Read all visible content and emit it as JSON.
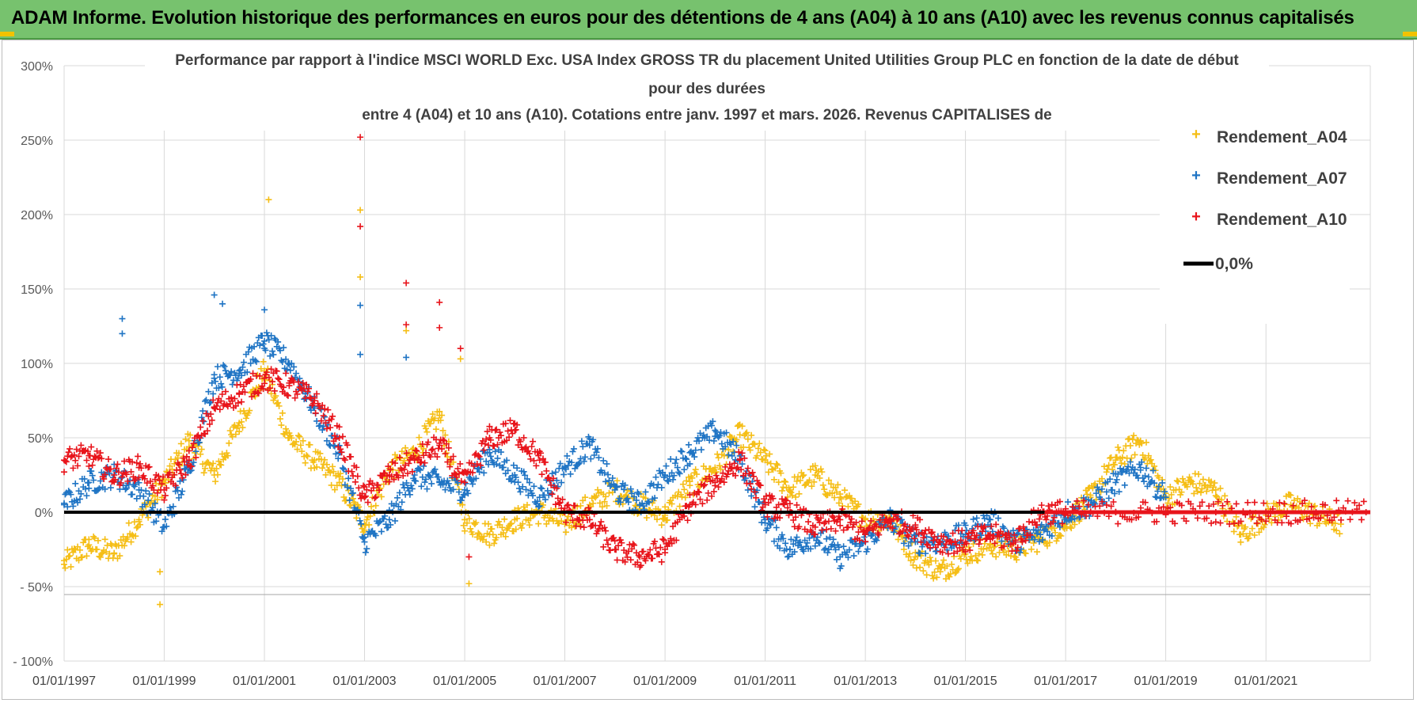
{
  "banner": {
    "title": "ADAM Informe. Evolution historique des performances en euros pour des détentions de 4 ans (A04) à 10 ans (A10) avec les revenus connus capitalisés"
  },
  "colors": {
    "banner_bg": "#77c26e",
    "A04": "#f5be16",
    "A07": "#1f74c4",
    "A10": "#e8141b",
    "zero_line": "#000000",
    "grid": "#d9d9d9"
  },
  "chart_data": {
    "type": "scatter",
    "title_lines": [
      "Performance par rapport à l'indice MSCI WORLD Exc. USA Index GROSS TR  du placement United Utilities Group PLC en fonction de la date de début",
      "pour des durées",
      "entre 4 (A04) et 10 ans (A10). Cotations entre janv. 1997 et mars. 2026. Revenus CAPITALISES de"
    ],
    "xlabel": "",
    "ylabel": "",
    "x_range": [
      "1997-01-01",
      "2023-02-01"
    ],
    "y_range": [
      -100,
      300
    ],
    "y_unit": "%",
    "y_tick_labels": [
      "300%",
      "250%",
      "200%",
      "150%",
      "100%",
      "50%",
      "0%",
      "- 50%",
      "- 100%"
    ],
    "y_tick_values": [
      300,
      250,
      200,
      150,
      100,
      50,
      0,
      -50,
      -100
    ],
    "x_tick_labels": [
      "01/01/1997",
      "01/01/1999",
      "01/01/2001",
      "01/01/2003",
      "01/01/2005",
      "01/01/2007",
      "01/01/2009",
      "01/01/2011",
      "01/01/2013",
      "01/01/2015",
      "01/01/2017",
      "01/01/2019",
      "01/01/2021"
    ],
    "x_tick_years": [
      1997,
      1999,
      2001,
      2003,
      2005,
      2007,
      2009,
      2011,
      2013,
      2015,
      2017,
      2019,
      2021
    ],
    "grid": true,
    "legend_position": "top-right",
    "marker": "+",
    "series": [
      {
        "name": "Rendement_A04",
        "key": "A04",
        "points": [
          [
            "1997-01-01",
            -35
          ],
          [
            "1997-07-01",
            -22
          ],
          [
            "1998-01-01",
            -28
          ],
          [
            "1998-07-01",
            -5
          ],
          [
            "1999-01-01",
            20
          ],
          [
            "1999-07-01",
            48
          ],
          [
            "2000-01-01",
            25
          ],
          [
            "2000-07-01",
            60
          ],
          [
            "2001-01-01",
            95
          ],
          [
            "2001-07-01",
            50
          ],
          [
            "2002-01-01",
            35
          ],
          [
            "2002-07-01",
            20
          ],
          [
            "2003-01-01",
            -8
          ],
          [
            "2003-07-01",
            28
          ],
          [
            "2004-01-01",
            40
          ],
          [
            "2004-07-01",
            65
          ],
          [
            "2005-01-01",
            -5
          ],
          [
            "2005-07-01",
            -15
          ],
          [
            "2006-01-01",
            -5
          ],
          [
            "2006-07-01",
            0
          ],
          [
            "2007-01-01",
            -8
          ],
          [
            "2007-07-01",
            5
          ],
          [
            "2008-01-01",
            15
          ],
          [
            "2008-07-01",
            5
          ],
          [
            "2009-01-01",
            -2
          ],
          [
            "2009-07-01",
            18
          ],
          [
            "2010-01-01",
            30
          ],
          [
            "2010-07-01",
            52
          ],
          [
            "2011-01-01",
            35
          ],
          [
            "2011-07-01",
            15
          ],
          [
            "2012-01-01",
            25
          ],
          [
            "2012-07-01",
            10
          ],
          [
            "2013-01-01",
            -5
          ],
          [
            "2013-07-01",
            -5
          ],
          [
            "2014-01-01",
            -30
          ],
          [
            "2014-07-01",
            -40
          ],
          [
            "2015-01-01",
            -28
          ],
          [
            "2015-07-01",
            -22
          ],
          [
            "2016-01-01",
            -25
          ],
          [
            "2016-07-01",
            -18
          ],
          [
            "2017-01-01",
            -8
          ],
          [
            "2017-07-01",
            10
          ],
          [
            "2018-01-01",
            35
          ],
          [
            "2018-07-01",
            48
          ],
          [
            "2019-01-01",
            10
          ],
          [
            "2019-07-01",
            20
          ],
          [
            "2020-01-01",
            15
          ],
          [
            "2020-07-01",
            -15
          ],
          [
            "2021-01-01",
            -2
          ],
          [
            "2021-07-01",
            5
          ],
          [
            "2022-01-01",
            -2
          ],
          [
            "2022-07-01",
            -8
          ]
        ]
      },
      {
        "name": "Rendement_A07",
        "key": "A07",
        "points": [
          [
            "1997-01-01",
            5
          ],
          [
            "1997-07-01",
            20
          ],
          [
            "1998-01-01",
            25
          ],
          [
            "1998-07-01",
            15
          ],
          [
            "1999-01-01",
            -10
          ],
          [
            "1999-07-01",
            30
          ],
          [
            "2000-01-01",
            90
          ],
          [
            "2000-07-01",
            95
          ],
          [
            "2001-01-01",
            115
          ],
          [
            "2001-07-01",
            100
          ],
          [
            "2002-01-01",
            70
          ],
          [
            "2002-07-01",
            40
          ],
          [
            "2003-01-01",
            -20
          ],
          [
            "2003-07-01",
            -5
          ],
          [
            "2004-01-01",
            25
          ],
          [
            "2004-07-01",
            20
          ],
          [
            "2005-01-01",
            15
          ],
          [
            "2005-07-01",
            40
          ],
          [
            "2006-01-01",
            25
          ],
          [
            "2006-07-01",
            10
          ],
          [
            "2007-01-01",
            30
          ],
          [
            "2007-07-01",
            45
          ],
          [
            "2008-01-01",
            15
          ],
          [
            "2008-07-01",
            5
          ],
          [
            "2009-01-01",
            25
          ],
          [
            "2009-07-01",
            40
          ],
          [
            "2010-01-01",
            55
          ],
          [
            "2010-07-01",
            35
          ],
          [
            "2011-01-01",
            -5
          ],
          [
            "2011-07-01",
            -25
          ],
          [
            "2012-01-01",
            -15
          ],
          [
            "2012-07-01",
            -30
          ],
          [
            "2013-01-01",
            -20
          ],
          [
            "2013-07-01",
            -5
          ],
          [
            "2014-01-01",
            -20
          ],
          [
            "2014-07-01",
            -20
          ],
          [
            "2015-01-01",
            -15
          ],
          [
            "2015-07-01",
            -5
          ],
          [
            "2016-01-01",
            -20
          ],
          [
            "2016-07-01",
            -15
          ],
          [
            "2017-01-01",
            0
          ],
          [
            "2017-07-01",
            5
          ],
          [
            "2018-01-01",
            20
          ],
          [
            "2018-07-01",
            30
          ],
          [
            "2019-01-01",
            10
          ]
        ]
      },
      {
        "name": "Rendement_A10",
        "key": "A10",
        "points": [
          [
            "1997-01-01",
            35
          ],
          [
            "1997-07-01",
            38
          ],
          [
            "1998-01-01",
            25
          ],
          [
            "1998-07-01",
            30
          ],
          [
            "1999-01-01",
            15
          ],
          [
            "1999-07-01",
            35
          ],
          [
            "2000-01-01",
            70
          ],
          [
            "2000-07-01",
            80
          ],
          [
            "2001-01-01",
            90
          ],
          [
            "2001-07-01",
            85
          ],
          [
            "2002-01-01",
            75
          ],
          [
            "2002-07-01",
            50
          ],
          [
            "2003-01-01",
            10
          ],
          [
            "2003-07-01",
            25
          ],
          [
            "2004-01-01",
            35
          ],
          [
            "2004-07-01",
            45
          ],
          [
            "2005-01-01",
            20
          ],
          [
            "2005-07-01",
            50
          ],
          [
            "2006-01-01",
            55
          ],
          [
            "2006-07-01",
            35
          ],
          [
            "2007-01-01",
            0
          ],
          [
            "2007-07-01",
            -5
          ],
          [
            "2008-01-01",
            -25
          ],
          [
            "2008-07-01",
            -30
          ],
          [
            "2009-01-01",
            -25
          ],
          [
            "2009-07-01",
            5
          ],
          [
            "2010-01-01",
            20
          ],
          [
            "2010-07-01",
            35
          ],
          [
            "2011-01-01",
            5
          ],
          [
            "2011-07-01",
            0
          ],
          [
            "2012-01-01",
            -10
          ],
          [
            "2012-07-01",
            -5
          ],
          [
            "2013-01-01",
            -15
          ],
          [
            "2013-07-01",
            -5
          ],
          [
            "2014-01-01",
            -10
          ],
          [
            "2014-07-01",
            -20
          ],
          [
            "2015-01-01",
            -20
          ],
          [
            "2015-07-01",
            -15
          ],
          [
            "2016-01-01",
            -20
          ],
          [
            "2016-07-01",
            0
          ],
          [
            "2017-01-01",
            0
          ],
          [
            "2018-01-01",
            0
          ],
          [
            "2019-01-01",
            0
          ],
          [
            "2020-01-01",
            0
          ],
          [
            "2021-01-01",
            0
          ],
          [
            "2022-01-01",
            0
          ],
          [
            "2023-01-01",
            0
          ]
        ]
      }
    ],
    "outliers": [
      {
        "key": "A10",
        "x": "2002-12-01",
        "y": 252
      },
      {
        "key": "A10",
        "x": "2002-12-01",
        "y": 192
      },
      {
        "key": "A10",
        "x": "2003-11-01",
        "y": 154
      },
      {
        "key": "A10",
        "x": "2004-07-01",
        "y": 141
      },
      {
        "key": "A10",
        "x": "2004-07-01",
        "y": 124
      },
      {
        "key": "A10",
        "x": "2003-11-01",
        "y": 126
      },
      {
        "key": "A10",
        "x": "2004-12-01",
        "y": 110
      },
      {
        "key": "A10",
        "x": "2005-02-01",
        "y": -30
      },
      {
        "key": "A04",
        "x": "2001-02-01",
        "y": 210
      },
      {
        "key": "A04",
        "x": "2002-12-01",
        "y": 203
      },
      {
        "key": "A04",
        "x": "2002-12-01",
        "y": 158
      },
      {
        "key": "A04",
        "x": "2003-11-01",
        "y": 122
      },
      {
        "key": "A04",
        "x": "1998-12-01",
        "y": -62
      },
      {
        "key": "A04",
        "x": "1998-12-01",
        "y": -40
      },
      {
        "key": "A04",
        "x": "2005-02-01",
        "y": -48
      },
      {
        "key": "A04",
        "x": "2004-12-01",
        "y": 103
      },
      {
        "key": "A07",
        "x": "1998-03-01",
        "y": 130
      },
      {
        "key": "A07",
        "x": "1998-03-01",
        "y": 120
      },
      {
        "key": "A07",
        "x": "2000-01-01",
        "y": 146
      },
      {
        "key": "A07",
        "x": "2000-03-01",
        "y": 140
      },
      {
        "key": "A07",
        "x": "2002-12-01",
        "y": 139
      },
      {
        "key": "A07",
        "x": "2002-12-01",
        "y": 106
      },
      {
        "key": "A07",
        "x": "2003-11-01",
        "y": 104
      },
      {
        "key": "A07",
        "x": "2001-01-01",
        "y": 136
      }
    ],
    "reference_line": {
      "name": "0,0%",
      "y": 0
    }
  }
}
